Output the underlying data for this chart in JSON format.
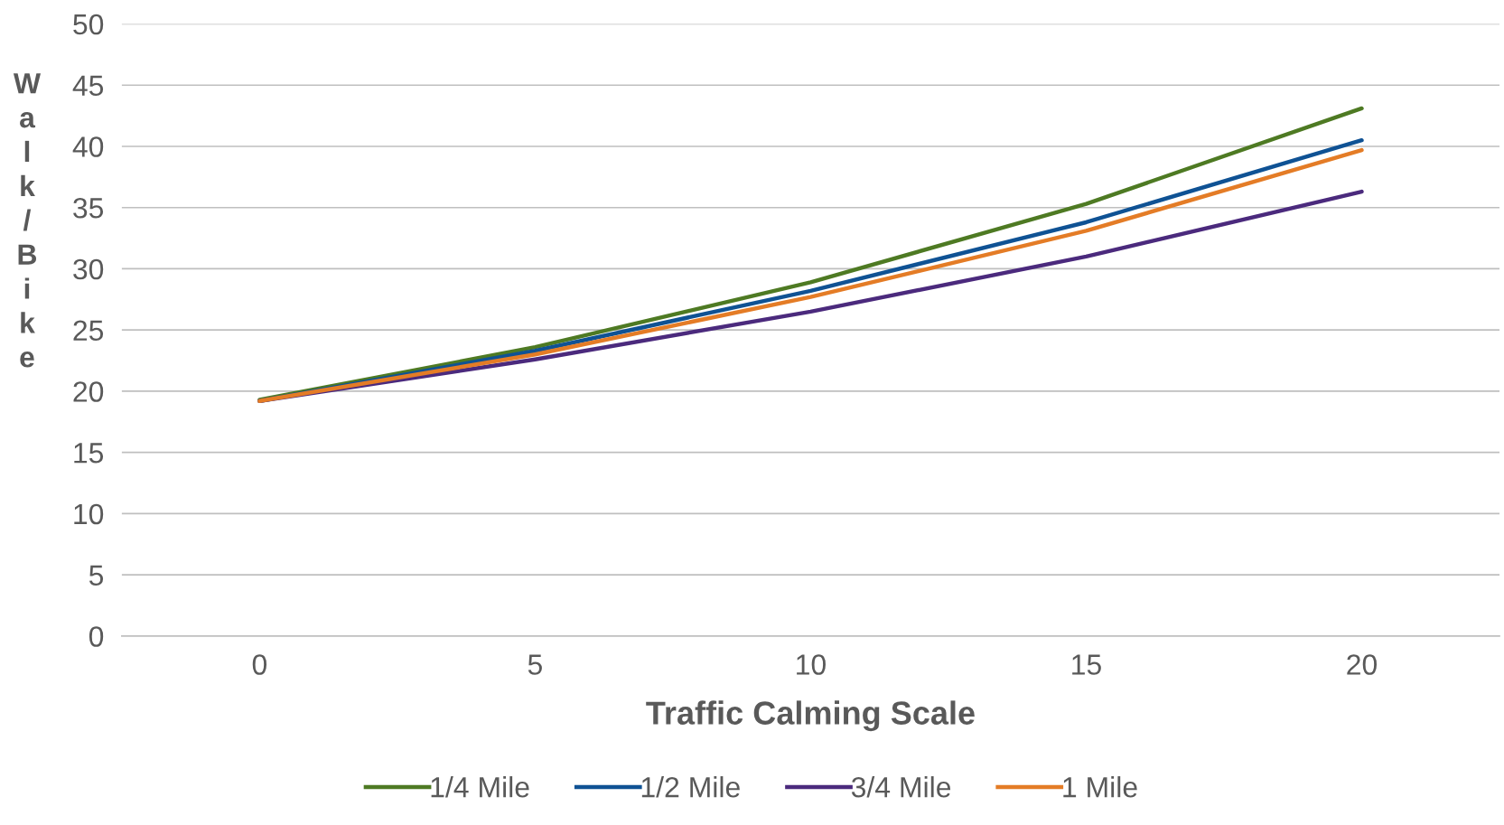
{
  "chart_data": {
    "type": "line",
    "xlabel": "Traffic Calming Scale",
    "ylabel": "Walk/Bike",
    "categories": [
      "0",
      "5",
      "10",
      "15",
      "20"
    ],
    "series": [
      {
        "name": "1/4 Mile",
        "color": "#4e7a23",
        "values": [
          19.3,
          23.6,
          28.9,
          35.3,
          43.1
        ]
      },
      {
        "name": "1/2 Mile",
        "color": "#0f5294",
        "values": [
          19.2,
          23.3,
          28.2,
          33.8,
          40.5
        ]
      },
      {
        "name": "3/4 Mile",
        "color": "#4b2a7d",
        "values": [
          19.2,
          22.6,
          26.5,
          31.0,
          36.3
        ]
      },
      {
        "name": "1 Mile",
        "color": "#e47c26",
        "values": [
          19.2,
          23.0,
          27.7,
          33.1,
          39.7
        ]
      }
    ],
    "ylim": [
      0,
      50
    ],
    "yticks": [
      0,
      5,
      10,
      15,
      20,
      25,
      30,
      35,
      40,
      45,
      50
    ],
    "grid": "y",
    "legend": "bottom",
    "marker": "none",
    "line_style": "solid"
  }
}
